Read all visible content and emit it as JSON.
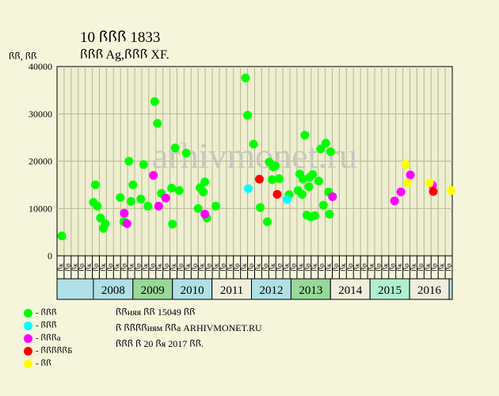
{
  "header": {
    "title_line1": "10 ꟗꟗꟗ 1833",
    "title_line2": "ꟗꟗꟗ Ag,ꟗꟗꟗ XF.",
    "y_unit": "ꟗꟗ, ꟗꟗ"
  },
  "watermark": "arhivmonet.ru",
  "legend": [
    {
      "label": "- ꟗꟗꟗ",
      "color": "#00ff00"
    },
    {
      "label": "- ꟗꟗꟗ",
      "color": "#00ffff"
    },
    {
      "label": "- ꟗꟗꟗа",
      "color": "#ff00ff"
    },
    {
      "label": "- ꟗꟗꟗꟗꟗБ",
      "color": "#ff0000"
    },
    {
      "label": "- ꟗꟗ",
      "color": "#ffff00"
    }
  ],
  "info": {
    "line1": "ꟗꟗняя ꟗꟗ 15049 ꟗꟗ",
    "line2": "ꟗ ꟗꟗꟗꟗиям ꟗꟗа ARHIVMONET.RU",
    "line3": "ꟗꟗꟗ ꟗ 20 ꟗя 2017 ꟗꟗ."
  },
  "chart_data": {
    "type": "scatter",
    "title": "10 ꟗꟗꟗ 1833",
    "ylabel": "ꟗꟗ, ꟗꟗ",
    "ylim": [
      0,
      40000
    ],
    "yticks": [
      0,
      10000,
      20000,
      30000,
      40000
    ],
    "grid": true,
    "x_half_year_labels": [
      "ꟗк",
      "ꟗр",
      "ꟗк",
      "ꟗр",
      "ꟗк",
      "ꟗр",
      "ꟗк",
      "ꟗр",
      "ꟗк",
      "ꟗр",
      "ꟗк",
      "ꟗр",
      "ꟗк",
      "ꟗр",
      "ꟗк",
      "ꟗр",
      "ꟗк",
      "ꟗр",
      "ꟗк",
      "ꟗр",
      "ꟗк",
      "ꟗр",
      "ꟗк",
      "ꟗр",
      "ꟗк",
      "ꟗр",
      "ꟗк",
      "ꟗр",
      "ꟗк",
      "ꟗр",
      "ꟗк",
      "ꟗр",
      "ꟗк",
      "ꟗр",
      "ꟗк",
      "ꟗр",
      "ꟗк",
      "ꟗр",
      "ꟗк",
      "ꟗр",
      "ꟗк",
      "ꟗр",
      "ꟗк",
      "ꟗр",
      "ꟗк",
      "ꟗр",
      "ꟗк",
      "ꟗр",
      "ꟗк",
      "ꟗр",
      "ꟗк",
      "ꟗр",
      "ꟗк",
      "ꟗр",
      "ꟗк",
      "ꟗр"
    ],
    "years": [
      {
        "label": "2008",
        "start": 2008.0,
        "end": 2009.0,
        "color": "#b0e0e6"
      },
      {
        "label": "2009",
        "start": 2009.0,
        "end": 2010.0,
        "color": "#98d898"
      },
      {
        "label": "2010",
        "start": 2010.0,
        "end": 2011.0,
        "color": "#b0e0e6"
      },
      {
        "label": "2011",
        "start": 2011.0,
        "end": 2012.0,
        "color": "#eeeedd"
      },
      {
        "label": "2012",
        "start": 2012.0,
        "end": 2013.0,
        "color": "#b0e0e6"
      },
      {
        "label": "2013",
        "start": 2013.0,
        "end": 2014.0,
        "color": "#98d898"
      },
      {
        "label": "2014",
        "start": 2014.0,
        "end": 2015.0,
        "color": "#eeeedd"
      },
      {
        "label": "2015",
        "start": 2015.0,
        "end": 2016.0,
        "color": "#b0f0d0"
      },
      {
        "label": "2016",
        "start": 2016.0,
        "end": 2017.0,
        "color": "#eeeedd"
      }
    ],
    "xlim": [
      2007.08,
      2017.08
    ],
    "series": [
      {
        "name": "- ꟗꟗꟗ",
        "color": "#00ff00",
        "points": [
          [
            2007.2,
            4200
          ],
          [
            2008.0,
            11300
          ],
          [
            2008.05,
            15000
          ],
          [
            2008.1,
            10500
          ],
          [
            2008.18,
            8000
          ],
          [
            2008.25,
            5800
          ],
          [
            2008.3,
            6800
          ],
          [
            2008.68,
            12300
          ],
          [
            2008.77,
            7200
          ],
          [
            2008.9,
            20000
          ],
          [
            2008.95,
            11500
          ],
          [
            2009.0,
            15000
          ],
          [
            2009.2,
            12000
          ],
          [
            2009.27,
            19300
          ],
          [
            2009.38,
            10500
          ],
          [
            2009.55,
            32600
          ],
          [
            2009.62,
            28000
          ],
          [
            2009.72,
            13200
          ],
          [
            2009.98,
            14300
          ],
          [
            2010.0,
            6700
          ],
          [
            2010.07,
            22800
          ],
          [
            2010.17,
            13800
          ],
          [
            2010.35,
            21700
          ],
          [
            2010.65,
            10000
          ],
          [
            2010.7,
            14400
          ],
          [
            2010.78,
            13500
          ],
          [
            2010.82,
            15600
          ],
          [
            2010.87,
            8000
          ],
          [
            2011.1,
            10500
          ],
          [
            2011.85,
            37600
          ],
          [
            2011.9,
            29700
          ],
          [
            2012.05,
            23600
          ],
          [
            2012.22,
            10200
          ],
          [
            2012.4,
            7200
          ],
          [
            2012.45,
            19800
          ],
          [
            2012.52,
            16100
          ],
          [
            2012.55,
            18800
          ],
          [
            2012.6,
            19000
          ],
          [
            2012.7,
            16300
          ],
          [
            2012.95,
            12900
          ],
          [
            2013.18,
            13800
          ],
          [
            2013.22,
            17300
          ],
          [
            2013.28,
            13000
          ],
          [
            2013.3,
            16200
          ],
          [
            2013.35,
            25500
          ],
          [
            2013.4,
            8600
          ],
          [
            2013.45,
            14600
          ],
          [
            2013.47,
            16600
          ],
          [
            2013.5,
            8200
          ],
          [
            2013.55,
            17200
          ],
          [
            2013.6,
            8500
          ],
          [
            2013.7,
            15800
          ],
          [
            2013.75,
            22600
          ],
          [
            2013.82,
            10700
          ],
          [
            2013.88,
            23800
          ],
          [
            2013.95,
            13500
          ],
          [
            2013.97,
            8800
          ],
          [
            2014.0,
            22000
          ]
        ]
      },
      {
        "name": "- ꟗꟗꟗ",
        "color": "#00ffff",
        "points": [
          [
            2011.92,
            14200
          ],
          [
            2012.9,
            11900
          ]
        ]
      },
      {
        "name": "- ꟗꟗꟗа",
        "color": "#ff00ff",
        "points": [
          [
            2008.78,
            9000
          ],
          [
            2008.85,
            6800
          ],
          [
            2009.52,
            17000
          ],
          [
            2009.65,
            10500
          ],
          [
            2009.83,
            12200
          ],
          [
            2010.82,
            8800
          ],
          [
            2014.05,
            12500
          ],
          [
            2015.62,
            11600
          ],
          [
            2015.78,
            13500
          ],
          [
            2016.02,
            17100
          ],
          [
            2016.58,
            14900
          ]
        ]
      },
      {
        "name": "- ꟗꟗꟗꟗꟗБ",
        "color": "#ff0000",
        "points": [
          [
            2012.2,
            16200
          ],
          [
            2012.65,
            13000
          ],
          [
            2016.6,
            13600
          ]
        ]
      },
      {
        "name": "- ꟗꟗ",
        "color": "#ffff00",
        "points": [
          [
            2015.9,
            19300
          ],
          [
            2015.95,
            15400
          ],
          [
            2016.5,
            15400
          ],
          [
            2017.05,
            13800
          ]
        ]
      }
    ]
  }
}
